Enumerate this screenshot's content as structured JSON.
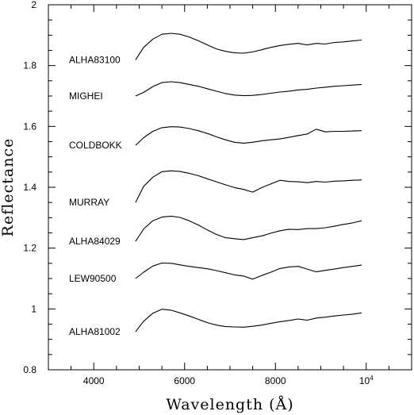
{
  "chart_data": {
    "type": "line",
    "xlabel": "Wavelength (Å)",
    "ylabel": "Reflectance",
    "xlim": [
      3000,
      11000
    ],
    "ylim": [
      0.8,
      2.0
    ],
    "x_ticks": [
      {
        "value": 4000,
        "label": "4000"
      },
      {
        "value": 6000,
        "label": "6000"
      },
      {
        "value": 8000,
        "label": "8000"
      },
      {
        "value": 10000,
        "label": "10",
        "sup": "4"
      }
    ],
    "y_ticks": [
      {
        "value": 0.8,
        "label": "0.8"
      },
      {
        "value": 1.0,
        "label": "1"
      },
      {
        "value": 1.2,
        "label": "1.2"
      },
      {
        "value": 1.4,
        "label": "1.4"
      },
      {
        "value": 1.6,
        "label": "1.6"
      },
      {
        "value": 1.8,
        "label": "1.8"
      },
      {
        "value": 2.0,
        "label": "2"
      }
    ],
    "grid": false,
    "series": [
      {
        "name": "ALHA83100",
        "x": [
          4920,
          5100,
          5300,
          5500,
          5700,
          5900,
          6100,
          6300,
          6500,
          6700,
          6900,
          7100,
          7300,
          7500,
          7700,
          7900,
          8100,
          8300,
          8500,
          8700,
          8900,
          9100,
          9300,
          9500,
          9700,
          9900
        ],
        "y": [
          1.819,
          1.86,
          1.887,
          1.903,
          1.906,
          1.903,
          1.894,
          1.882,
          1.868,
          1.855,
          1.847,
          1.842,
          1.841,
          1.845,
          1.852,
          1.86,
          1.866,
          1.87,
          1.873,
          1.868,
          1.873,
          1.871,
          1.876,
          1.878,
          1.881,
          1.884
        ]
      },
      {
        "name": "MIGHEI",
        "x": [
          4920,
          5100,
          5300,
          5500,
          5700,
          5900,
          6100,
          6300,
          6500,
          6700,
          6900,
          7100,
          7300,
          7500,
          7700,
          7900,
          8100,
          8300,
          8500,
          8700,
          8900,
          9100,
          9300,
          9500,
          9700,
          9900
        ],
        "y": [
          1.7,
          1.712,
          1.731,
          1.744,
          1.747,
          1.744,
          1.738,
          1.732,
          1.724,
          1.716,
          1.708,
          1.703,
          1.701,
          1.702,
          1.705,
          1.709,
          1.713,
          1.716,
          1.72,
          1.722,
          1.726,
          1.729,
          1.732,
          1.734,
          1.736,
          1.738
        ]
      },
      {
        "name": "COLDBOKK",
        "x": [
          4920,
          5100,
          5300,
          5500,
          5700,
          5900,
          6100,
          6300,
          6500,
          6700,
          6900,
          7100,
          7300,
          7500,
          7700,
          7900,
          8100,
          8300,
          8500,
          8700,
          8900,
          9100,
          9300,
          9500,
          9700,
          9900
        ],
        "y": [
          1.538,
          1.563,
          1.584,
          1.596,
          1.599,
          1.598,
          1.593,
          1.586,
          1.577,
          1.566,
          1.556,
          1.548,
          1.545,
          1.548,
          1.553,
          1.556,
          1.559,
          1.564,
          1.57,
          1.575,
          1.591,
          1.582,
          1.584,
          1.584,
          1.585,
          1.586
        ]
      },
      {
        "name": "MURRAY",
        "x": [
          4920,
          5100,
          5300,
          5500,
          5700,
          5900,
          6100,
          6300,
          6500,
          6700,
          6900,
          7100,
          7300,
          7500,
          7700,
          7900,
          8100,
          8300,
          8500,
          8700,
          8900,
          9100,
          9300,
          9500,
          9700,
          9900
        ],
        "y": [
          1.35,
          1.403,
          1.433,
          1.451,
          1.454,
          1.452,
          1.446,
          1.438,
          1.428,
          1.418,
          1.408,
          1.399,
          1.393,
          1.384,
          1.399,
          1.411,
          1.423,
          1.419,
          1.418,
          1.415,
          1.419,
          1.417,
          1.42,
          1.421,
          1.423,
          1.424
        ]
      },
      {
        "name": "ALHA84029",
        "x": [
          4920,
          5100,
          5300,
          5500,
          5700,
          5900,
          6100,
          6300,
          6500,
          6700,
          6900,
          7100,
          7300,
          7500,
          7700,
          7900,
          8100,
          8300,
          8500,
          8700,
          8900,
          9100,
          9300,
          9500,
          9700,
          9900
        ],
        "y": [
          1.222,
          1.263,
          1.29,
          1.302,
          1.305,
          1.301,
          1.29,
          1.276,
          1.26,
          1.245,
          1.234,
          1.231,
          1.228,
          1.234,
          1.24,
          1.249,
          1.257,
          1.262,
          1.261,
          1.264,
          1.264,
          1.267,
          1.272,
          1.278,
          1.283,
          1.29
        ]
      },
      {
        "name": "LEW90500",
        "x": [
          4920,
          5100,
          5300,
          5500,
          5700,
          5900,
          6100,
          6300,
          6500,
          6700,
          6900,
          7100,
          7300,
          7500,
          7700,
          7900,
          8100,
          8300,
          8500,
          8700,
          8900,
          9100,
          9300,
          9500,
          9700,
          9900
        ],
        "y": [
          1.1,
          1.121,
          1.141,
          1.151,
          1.15,
          1.145,
          1.14,
          1.136,
          1.132,
          1.126,
          1.119,
          1.112,
          1.108,
          1.098,
          1.11,
          1.121,
          1.133,
          1.138,
          1.14,
          1.131,
          1.122,
          1.127,
          1.131,
          1.136,
          1.14,
          1.144
        ]
      },
      {
        "name": "ALHA81002",
        "x": [
          4920,
          5100,
          5300,
          5500,
          5700,
          5900,
          6100,
          6300,
          6500,
          6700,
          6900,
          7100,
          7300,
          7500,
          7700,
          7900,
          8100,
          8300,
          8500,
          8700,
          8900,
          9100,
          9300,
          9500,
          9700,
          9900
        ],
        "y": [
          0.925,
          0.96,
          0.986,
          0.999,
          0.996,
          0.987,
          0.977,
          0.966,
          0.955,
          0.947,
          0.942,
          0.941,
          0.94,
          0.943,
          0.947,
          0.953,
          0.958,
          0.962,
          0.967,
          0.963,
          0.97,
          0.973,
          0.977,
          0.98,
          0.983,
          0.987
        ]
      }
    ]
  }
}
